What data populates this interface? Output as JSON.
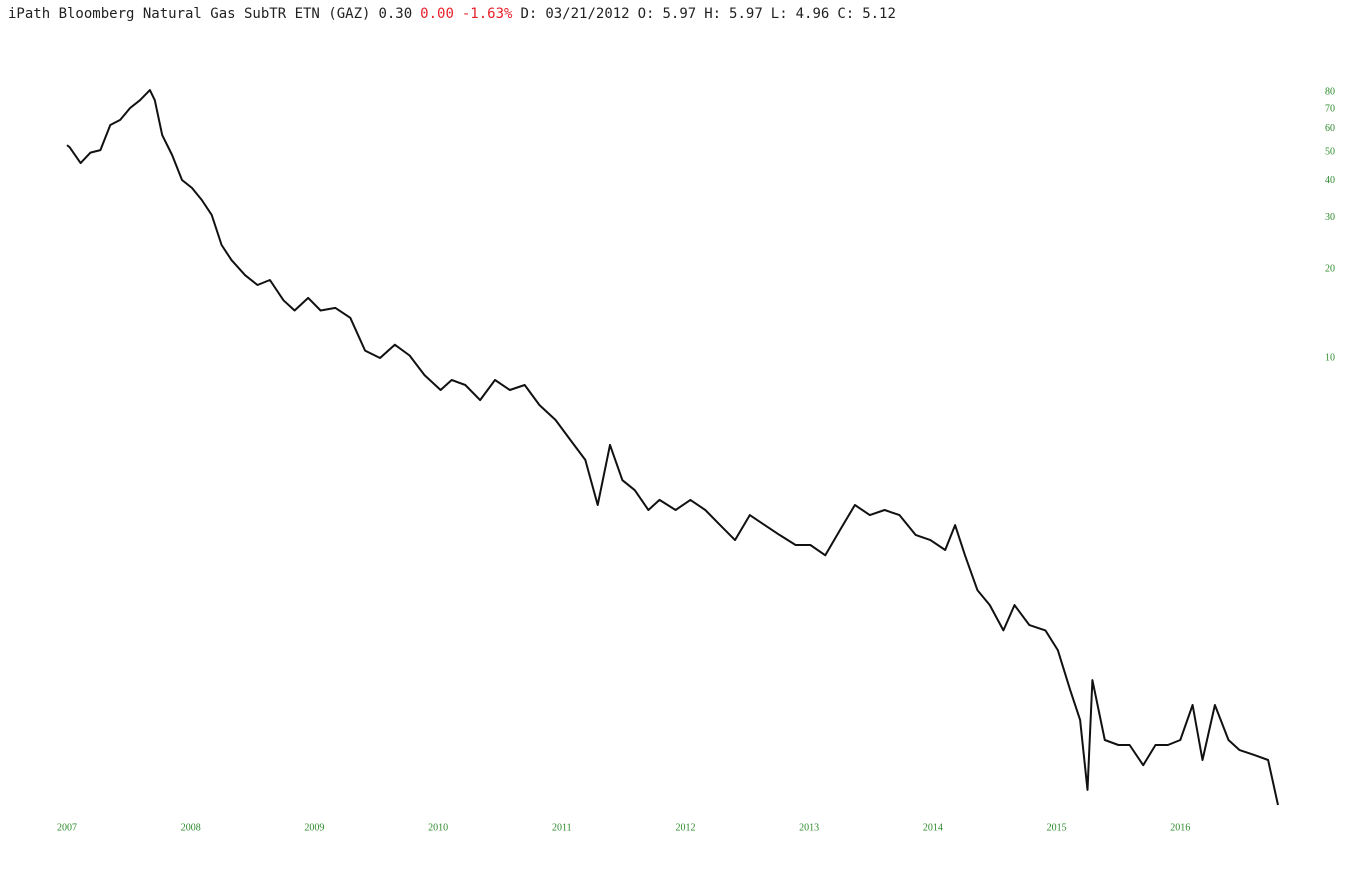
{
  "chart_data": {
    "type": "line",
    "header": [
      {
        "text": "iPath Bloomberg Natural Gas SubTR ETN (GAZ)",
        "color": "#222222"
      },
      {
        "text": "0.30",
        "color": "#222222"
      },
      {
        "text": "0.00",
        "color": "#e8202a"
      },
      {
        "text": "-1.63%",
        "color": "#e8202a"
      },
      {
        "text": "D:",
        "color": "#222222"
      },
      {
        "text": "03/21/2012",
        "color": "#222222"
      },
      {
        "text": "O:",
        "color": "#222222"
      },
      {
        "text": "5.97",
        "color": "#222222"
      },
      {
        "text": "H:",
        "color": "#222222"
      },
      {
        "text": "5.97",
        "color": "#222222"
      },
      {
        "text": "L:",
        "color": "#222222"
      },
      {
        "text": "4.96",
        "color": "#222222"
      },
      {
        "text": "C:",
        "color": "#222222"
      },
      {
        "text": "5.12",
        "color": "#222222"
      }
    ],
    "x": [
      2007.0,
      2007.02,
      2007.11,
      2007.19,
      2007.27,
      2007.35,
      2007.43,
      2007.51,
      2007.59,
      2007.67,
      2007.71,
      2007.77,
      2007.85,
      2007.93,
      2008.01,
      2008.09,
      2008.17,
      2008.25,
      2008.33,
      2008.44,
      2008.54,
      2008.64,
      2008.75,
      2008.84,
      2008.95,
      2009.05,
      2009.17,
      2009.29,
      2009.41,
      2009.53,
      2009.65,
      2009.77,
      2009.89,
      2010.02,
      2010.11,
      2010.22,
      2010.34,
      2010.46,
      2010.58,
      2010.7,
      2010.82,
      2010.95,
      2011.07,
      2011.19,
      2011.29,
      2011.39,
      2011.49,
      2011.59,
      2011.7,
      2011.79,
      2011.92,
      2012.04,
      2012.16,
      2012.28,
      2012.4,
      2012.52,
      2012.64,
      2012.76,
      2012.89,
      2013.01,
      2013.13,
      2013.25,
      2013.37,
      2013.49,
      2013.61,
      2013.73,
      2013.86,
      2013.98,
      2014.1,
      2014.18,
      2014.26,
      2014.36,
      2014.46,
      2014.57,
      2014.66,
      2014.78,
      2014.91,
      2015.01,
      2015.11,
      2015.19,
      2015.25,
      2015.29,
      2015.39,
      2015.5,
      2015.59,
      2015.7,
      2015.8,
      2015.9,
      2016.0,
      2016.1,
      2016.18,
      2016.28,
      2016.39,
      2016.48,
      2016.6,
      2016.71,
      2016.79
    ],
    "values": [
      52.8,
      52,
      45.9,
      49.8,
      50.8,
      61.8,
      64.3,
      70.6,
      75.0,
      81.2,
      75,
      57.1,
      48.9,
      40.2,
      37.8,
      34.4,
      30.6,
      24.2,
      21.5,
      19.1,
      17.7,
      18.4,
      15.7,
      14.5,
      16.0,
      14.5,
      14.8,
      13.7,
      10.6,
      10.0,
      11.1,
      10.2,
      8.75,
      7.79,
      8.42,
      8.1,
      7.2,
      8.42,
      7.79,
      8.1,
      6.92,
      6.16,
      5.27,
      4.51,
      3.17,
      5.07,
      3.85,
      3.56,
      3.05,
      3.3,
      3.05,
      3.3,
      3.05,
      2.71,
      2.41,
      2.93,
      2.71,
      2.51,
      2.32,
      2.32,
      2.14,
      2.61,
      3.17,
      2.93,
      3.05,
      2.93,
      2.51,
      2.41,
      2.23,
      2.71,
      2.14,
      1.63,
      1.45,
      1.19,
      1.45,
      1.24,
      1.19,
      1.02,
      0.746,
      0.591,
      0.342,
      0.807,
      0.505,
      0.486,
      0.486,
      0.415,
      0.486,
      0.486,
      0.505,
      0.664,
      0.432,
      0.664,
      0.505,
      0.467,
      0.449,
      0.432,
      0.304
    ],
    "color": "#111111",
    "axis_color": "#2a8a2a",
    "xlim": [
      2007,
      2016.9
    ],
    "xticks": [
      2007,
      2008,
      2009,
      2010,
      2011,
      2012,
      2013,
      2014,
      2015,
      2016
    ],
    "ylim": [
      0.25,
      95
    ],
    "yticks": [
      10,
      20,
      30,
      40,
      50,
      60,
      70,
      80
    ],
    "log_scale": true
  }
}
